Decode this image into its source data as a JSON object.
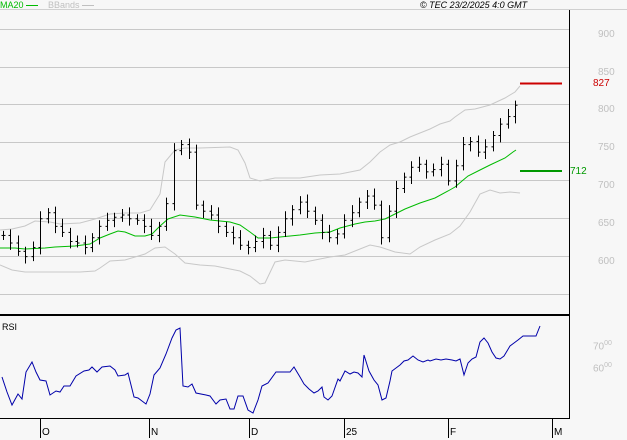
{
  "legend": {
    "ma_label": "MA20",
    "ma_color": "#00bb00",
    "bb_label": "BBands",
    "bb_color": "#c0c0c0"
  },
  "copyright": "© TEC 23/2/2025 4:0 GMT",
  "price_axis": {
    "ticks": [
      "900",
      "850",
      "800",
      "750",
      "700",
      "650",
      "600"
    ]
  },
  "levels": {
    "resistance": {
      "value": "827",
      "color": "#cc0000"
    },
    "support": {
      "value": "712",
      "color": "#009900"
    }
  },
  "rsi": {
    "title": "RSI",
    "ticks": [
      "70",
      "60"
    ],
    "tick_suffix": "00",
    "color": "#0000aa"
  },
  "x_axis": {
    "labels": [
      "O",
      "N",
      "D",
      "25",
      "F",
      "M"
    ]
  },
  "chart_data": [
    {
      "type": "line",
      "title": "Price (OHLC bars) with MA20 and Bollinger Bands",
      "ylim": [
        540,
        920
      ],
      "y_ticks": [
        600,
        650,
        700,
        750,
        800,
        850,
        900
      ],
      "x_tick_labels": [
        "O",
        "N",
        "D",
        "25",
        "F",
        "M"
      ],
      "grid": true,
      "legend": [
        "MA20",
        "BBands"
      ],
      "series": [
        {
          "name": "Close (approx)",
          "values": [
            628,
            618,
            607,
            600,
            612,
            650,
            658,
            640,
            632,
            620,
            618,
            612,
            625,
            640,
            648,
            652,
            655,
            650,
            648,
            640,
            628,
            640,
            670,
            740,
            748,
            738,
            668,
            660,
            655,
            640,
            632,
            625,
            615,
            612,
            620,
            628,
            615,
            632,
            650,
            662,
            672,
            660,
            648,
            632,
            625,
            630,
            648,
            658,
            672,
            680,
            668,
            625,
            660,
            690,
            705,
            718,
            722,
            712,
            715,
            722,
            700,
            720,
            748,
            752,
            738,
            745,
            760,
            775,
            785,
            800
          ]
        },
        {
          "name": "MA20",
          "values": [
            622,
            622,
            621,
            622,
            624,
            626,
            627,
            630,
            633,
            637,
            640,
            643,
            650,
            658,
            662,
            662,
            660,
            658,
            655,
            650,
            645,
            638,
            635,
            636,
            638,
            640,
            642,
            645,
            650,
            655,
            660,
            668,
            680,
            690,
            700,
            712,
            720,
            728,
            738,
            745
          ]
        },
        {
          "name": "BB Upper",
          "values": [
            652,
            655,
            660,
            663,
            660,
            662,
            665,
            730,
            735,
            735,
            732,
            700,
            670,
            672,
            678,
            680,
            680,
            690,
            705,
            720,
            730,
            735,
            742,
            750,
            760,
            775,
            795
          ]
        },
        {
          "name": "BB Lower",
          "values": [
            607,
            602,
            600,
            603,
            610,
            610,
            600,
            598,
            600,
            592,
            585,
            580,
            598,
            605,
            615,
            625,
            630,
            638,
            626,
            630,
            650,
            668,
            678,
            685,
            688,
            690
          ]
        }
      ],
      "levels": {
        "resistance": 827,
        "support": 712
      }
    },
    {
      "type": "line",
      "title": "RSI",
      "y_ticks": [
        60,
        70
      ],
      "series": [
        {
          "name": "RSI",
          "values": [
            55,
            48,
            44,
            48,
            46,
            56,
            60,
            55,
            54,
            47,
            49,
            48,
            50,
            54,
            56,
            58,
            58,
            59,
            57,
            54,
            50,
            48,
            44,
            56,
            62,
            72,
            76,
            52,
            50,
            46,
            44,
            43,
            45,
            44,
            56,
            58,
            60,
            55,
            54,
            50,
            48,
            58,
            62,
            60,
            56,
            52,
            50,
            62,
            64,
            66,
            65,
            64,
            66,
            64,
            58,
            66,
            72,
            74,
            68,
            70,
            72,
            74,
            78
          ]
        }
      ]
    }
  ]
}
